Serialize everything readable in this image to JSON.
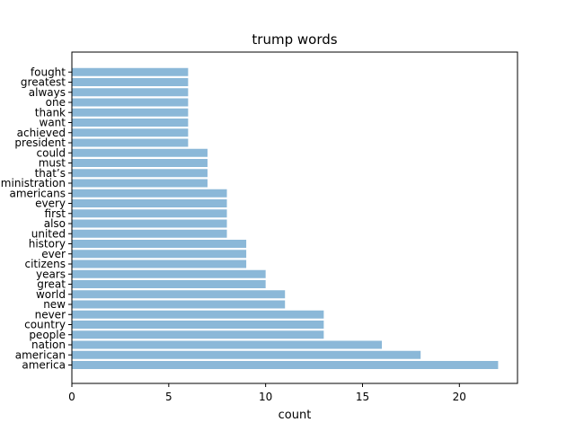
{
  "chart_data": {
    "type": "bar",
    "orientation": "horizontal",
    "title": "trump words",
    "xlabel": "count",
    "ylabel": "",
    "xlim": [
      0,
      23
    ],
    "xticks": [
      0,
      5,
      10,
      15,
      20
    ],
    "grid": false,
    "bar_color": "#8bb8d8",
    "categories": [
      "america",
      "american",
      "nation",
      "people",
      "country",
      "never",
      "new",
      "world",
      "great",
      "years",
      "citizens",
      "ever",
      "history",
      "united",
      "also",
      "first",
      "every",
      "americans",
      "administration",
      "that’s",
      "must",
      "could",
      "president",
      "achieved",
      "want",
      "thank",
      "one",
      "always",
      "greatest",
      "fought"
    ],
    "values": [
      22,
      18,
      16,
      13,
      13,
      13,
      11,
      11,
      10,
      10,
      9,
      9,
      9,
      8,
      8,
      8,
      8,
      8,
      7,
      7,
      7,
      7,
      6,
      6,
      6,
      6,
      6,
      6,
      6,
      6
    ]
  }
}
